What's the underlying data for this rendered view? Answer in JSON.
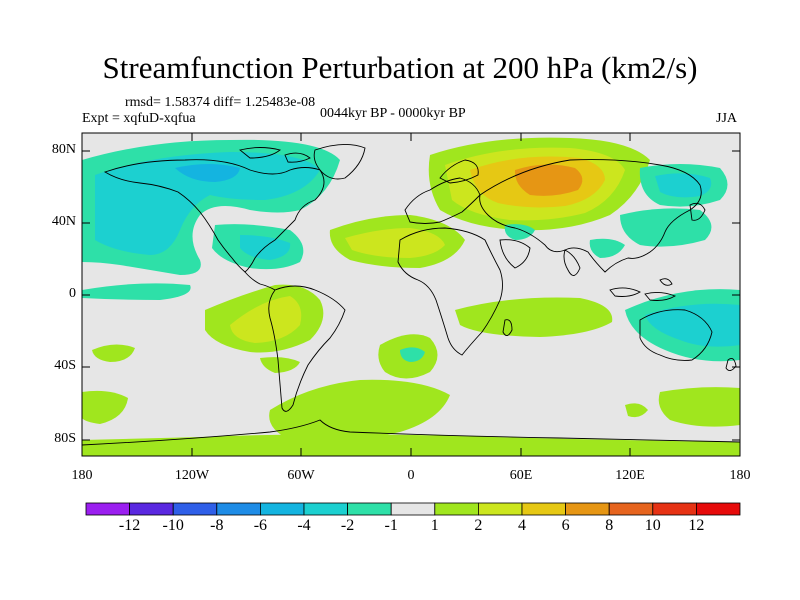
{
  "title": "Streamfunction Perturbation at 200 hPa (km2/s)",
  "stats_line": "rmsd= 1.58374 diff= 1.25483e-08",
  "experiment": "Expt = xqfuD-xqfua",
  "period": "0044kyr BP - 0000kyr BP",
  "season": "JJA",
  "lat_labels": [
    "80N",
    "40N",
    "0",
    "40S",
    "80S"
  ],
  "lon_labels": [
    "180",
    "120W",
    "60W",
    "0",
    "60E",
    "120E",
    "180"
  ],
  "colorbar": {
    "labels": [
      "-12",
      "-10",
      "-8",
      "-6",
      "-4",
      "-2",
      "-1",
      "1",
      "2",
      "4",
      "6",
      "8",
      "10",
      "12"
    ],
    "colors": [
      "#9b1ff0",
      "#5a28e0",
      "#2f5fe8",
      "#1e8ce6",
      "#14b4e0",
      "#1cd0d0",
      "#2ee0a8",
      "#e6e6e6",
      "#a0e61e",
      "#cce61e",
      "#e6c814",
      "#e69614",
      "#e6641e",
      "#e63214",
      "#e60a0a"
    ]
  },
  "field_colors": {
    "neg1": "#2ee0a8",
    "neg2": "#1cd0d0",
    "neg4": "#14b4e0",
    "pos1": "#a0e61e",
    "pos2": "#cce61e",
    "pos4": "#e6c814",
    "pos6": "#e69614",
    "background": "#e6e6e6"
  }
}
